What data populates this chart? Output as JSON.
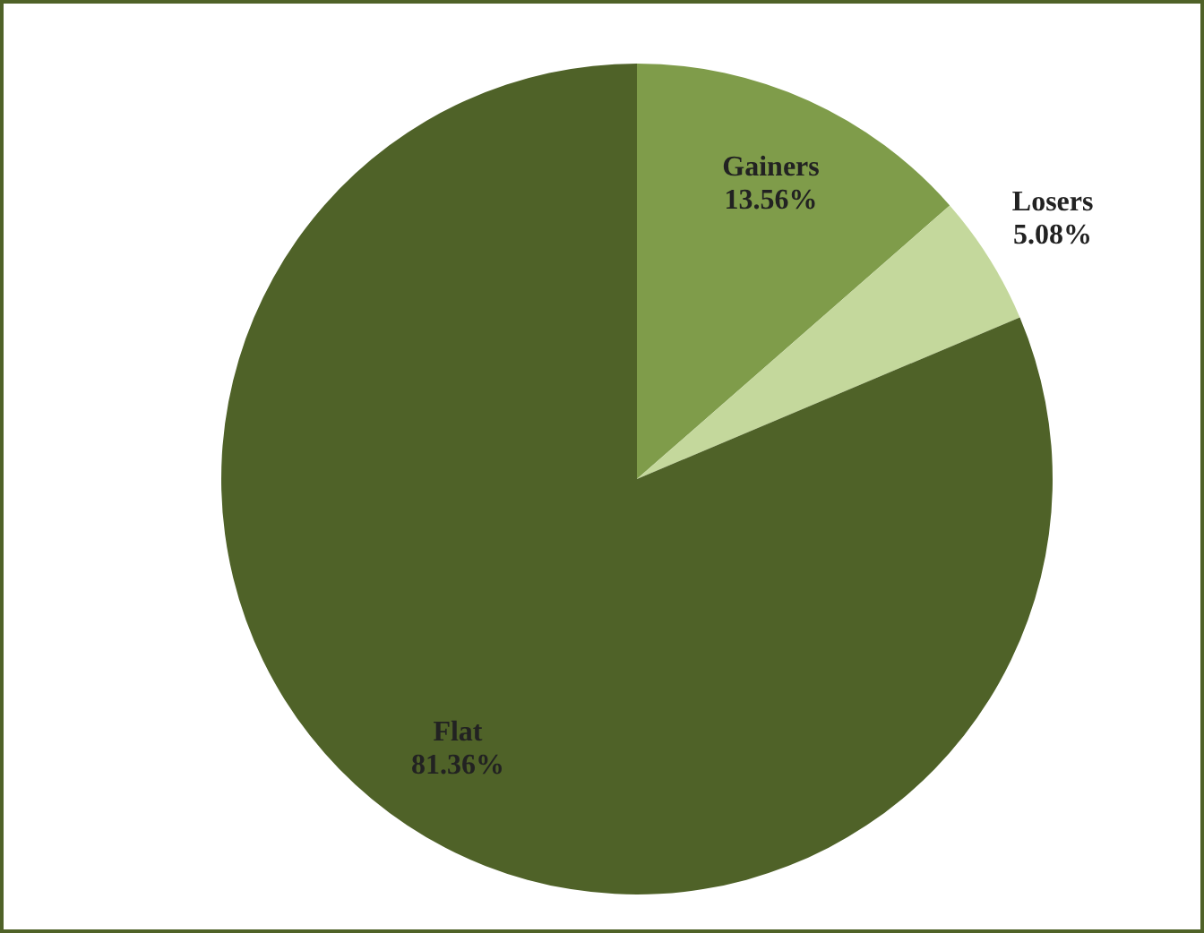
{
  "chart_data": {
    "type": "pie",
    "categories": [
      "Gainers",
      "Losers",
      "Flat"
    ],
    "values": [
      13.56,
      5.08,
      81.36
    ],
    "colors": [
      "#7f9c4a",
      "#c4d89c",
      "#4f6228"
    ],
    "value_labels": [
      "13.56%",
      "5.08%",
      "81.36%"
    ]
  }
}
